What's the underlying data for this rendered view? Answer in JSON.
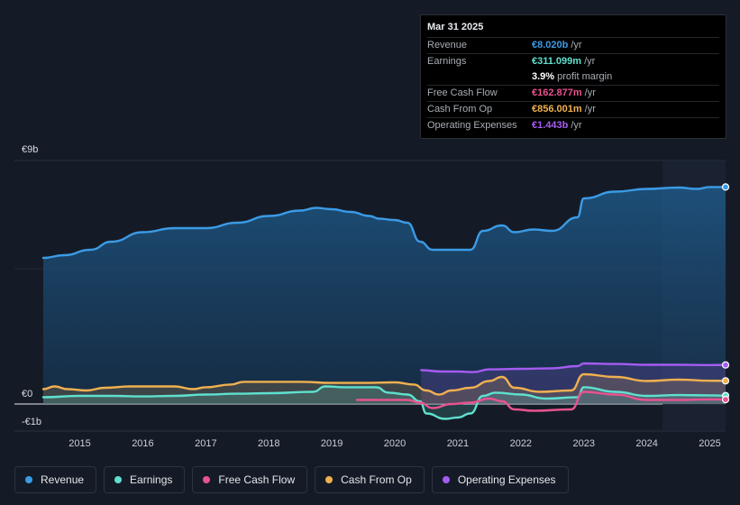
{
  "tooltip": {
    "date": "Mar 31 2025",
    "rows": [
      {
        "label": "Revenue",
        "value": "€8.020b",
        "unit": "/yr",
        "color": "#3b9be6"
      },
      {
        "label": "Earnings",
        "value": "€311.099m",
        "unit": "/yr",
        "color": "#5fe0cf"
      },
      {
        "label": "",
        "value": "3.9%",
        "unit": "profit margin",
        "color": "#ffffff"
      },
      {
        "label": "Free Cash Flow",
        "value": "€162.877m",
        "unit": "/yr",
        "color": "#e8538f"
      },
      {
        "label": "Cash From Op",
        "value": "€856.001m",
        "unit": "/yr",
        "color": "#f0b050"
      },
      {
        "label": "Operating Expenses",
        "value": "€1.443b",
        "unit": "/yr",
        "color": "#a55cf2"
      }
    ]
  },
  "legend": [
    {
      "label": "Revenue",
      "color": "#3b9be6"
    },
    {
      "label": "Earnings",
      "color": "#5fe0cf"
    },
    {
      "label": "Free Cash Flow",
      "color": "#e8538f"
    },
    {
      "label": "Cash From Op",
      "color": "#f0b050"
    },
    {
      "label": "Operating Expenses",
      "color": "#a55cf2"
    }
  ],
  "chart_data": {
    "type": "area",
    "title": "",
    "xlabel": "",
    "ylabel": "",
    "ylim": [
      -1,
      9
    ],
    "xlim": [
      2014.42,
      2025.25
    ],
    "y_ticks": [
      {
        "value": 9,
        "label": "€9b"
      },
      {
        "value": 0,
        "label": "€0"
      },
      {
        "value": -1,
        "label": "-€1b"
      }
    ],
    "x_ticks": [
      2015,
      2016,
      2017,
      2018,
      2019,
      2020,
      2021,
      2022,
      2023,
      2024,
      2025
    ],
    "x_tick_labels": [
      "2015",
      "2016",
      "2017",
      "2018",
      "2019",
      "2020",
      "2021",
      "2022",
      "2023",
      "2024",
      "2025"
    ],
    "highlight_from": 2024.25,
    "series": [
      {
        "name": "Revenue",
        "color": "#3b9be6",
        "fill": true,
        "points": [
          [
            2014.42,
            5.4
          ],
          [
            2014.75,
            5.5
          ],
          [
            2015.17,
            5.7
          ],
          [
            2015.5,
            6.0
          ],
          [
            2016.0,
            6.35
          ],
          [
            2016.5,
            6.5
          ],
          [
            2017.0,
            6.5
          ],
          [
            2017.5,
            6.7
          ],
          [
            2018.0,
            6.95
          ],
          [
            2018.5,
            7.15
          ],
          [
            2018.75,
            7.25
          ],
          [
            2019.0,
            7.2
          ],
          [
            2019.3,
            7.1
          ],
          [
            2019.6,
            6.95
          ],
          [
            2019.75,
            6.85
          ],
          [
            2020.0,
            6.8
          ],
          [
            2020.2,
            6.7
          ],
          [
            2020.4,
            6.0
          ],
          [
            2020.6,
            5.7
          ],
          [
            2021.0,
            5.7
          ],
          [
            2021.2,
            5.7
          ],
          [
            2021.4,
            6.4
          ],
          [
            2021.7,
            6.6
          ],
          [
            2021.9,
            6.35
          ],
          [
            2022.2,
            6.45
          ],
          [
            2022.5,
            6.4
          ],
          [
            2022.9,
            6.9
          ],
          [
            2023.0,
            7.6
          ],
          [
            2023.5,
            7.85
          ],
          [
            2024.0,
            7.95
          ],
          [
            2024.5,
            8.0
          ],
          [
            2024.8,
            7.95
          ],
          [
            2025.0,
            8.02
          ],
          [
            2025.25,
            8.02
          ]
        ]
      },
      {
        "name": "Operating Expenses",
        "color": "#a55cf2",
        "fill": true,
        "points": [
          [
            2020.42,
            1.25
          ],
          [
            2020.75,
            1.2
          ],
          [
            2021.0,
            1.2
          ],
          [
            2021.25,
            1.18
          ],
          [
            2021.5,
            1.28
          ],
          [
            2022.0,
            1.3
          ],
          [
            2022.5,
            1.32
          ],
          [
            2022.9,
            1.4
          ],
          [
            2023.0,
            1.5
          ],
          [
            2023.5,
            1.48
          ],
          [
            2024.0,
            1.45
          ],
          [
            2024.5,
            1.45
          ],
          [
            2025.0,
            1.44
          ],
          [
            2025.25,
            1.443
          ]
        ]
      },
      {
        "name": "Cash From Op",
        "color": "#f0b050",
        "fill": true,
        "points": [
          [
            2014.42,
            0.55
          ],
          [
            2014.6,
            0.65
          ],
          [
            2014.8,
            0.55
          ],
          [
            2015.1,
            0.5
          ],
          [
            2015.4,
            0.6
          ],
          [
            2015.8,
            0.65
          ],
          [
            2016.5,
            0.65
          ],
          [
            2016.8,
            0.55
          ],
          [
            2017.0,
            0.62
          ],
          [
            2017.4,
            0.72
          ],
          [
            2017.6,
            0.82
          ],
          [
            2018.0,
            0.82
          ],
          [
            2018.5,
            0.82
          ],
          [
            2019.0,
            0.78
          ],
          [
            2019.5,
            0.78
          ],
          [
            2020.0,
            0.8
          ],
          [
            2020.3,
            0.72
          ],
          [
            2020.5,
            0.5
          ],
          [
            2020.7,
            0.35
          ],
          [
            2020.9,
            0.5
          ],
          [
            2021.2,
            0.6
          ],
          [
            2021.5,
            0.85
          ],
          [
            2021.7,
            1.0
          ],
          [
            2021.9,
            0.6
          ],
          [
            2022.3,
            0.45
          ],
          [
            2022.8,
            0.5
          ],
          [
            2023.0,
            1.1
          ],
          [
            2023.5,
            1.0
          ],
          [
            2024.0,
            0.85
          ],
          [
            2024.5,
            0.9
          ],
          [
            2025.0,
            0.86
          ],
          [
            2025.25,
            0.856
          ]
        ]
      },
      {
        "name": "Earnings",
        "color": "#5fe0cf",
        "fill": true,
        "points": [
          [
            2014.42,
            0.25
          ],
          [
            2015.0,
            0.3
          ],
          [
            2015.5,
            0.3
          ],
          [
            2016.0,
            0.28
          ],
          [
            2016.5,
            0.3
          ],
          [
            2017.0,
            0.35
          ],
          [
            2017.5,
            0.38
          ],
          [
            2018.0,
            0.4
          ],
          [
            2018.7,
            0.45
          ],
          [
            2018.9,
            0.65
          ],
          [
            2019.2,
            0.62
          ],
          [
            2019.7,
            0.62
          ],
          [
            2019.9,
            0.42
          ],
          [
            2020.2,
            0.35
          ],
          [
            2020.4,
            0.1
          ],
          [
            2020.5,
            -0.35
          ],
          [
            2020.8,
            -0.55
          ],
          [
            2021.0,
            -0.5
          ],
          [
            2021.2,
            -0.35
          ],
          [
            2021.4,
            0.3
          ],
          [
            2021.6,
            0.42
          ],
          [
            2022.0,
            0.35
          ],
          [
            2022.4,
            0.2
          ],
          [
            2022.9,
            0.25
          ],
          [
            2023.0,
            0.62
          ],
          [
            2023.5,
            0.45
          ],
          [
            2024.0,
            0.3
          ],
          [
            2024.5,
            0.33
          ],
          [
            2025.0,
            0.32
          ],
          [
            2025.25,
            0.311
          ]
        ]
      },
      {
        "name": "Free Cash Flow",
        "color": "#e8538f",
        "fill": false,
        "points": [
          [
            2019.4,
            0.15
          ],
          [
            2019.75,
            0.15
          ],
          [
            2020.2,
            0.15
          ],
          [
            2020.4,
            0.05
          ],
          [
            2020.6,
            -0.15
          ],
          [
            2020.9,
            0.0
          ],
          [
            2021.2,
            0.05
          ],
          [
            2021.5,
            0.2
          ],
          [
            2021.7,
            0.1
          ],
          [
            2021.9,
            -0.2
          ],
          [
            2022.2,
            -0.25
          ],
          [
            2022.8,
            -0.2
          ],
          [
            2023.0,
            0.45
          ],
          [
            2023.5,
            0.35
          ],
          [
            2024.0,
            0.15
          ],
          [
            2024.5,
            0.15
          ],
          [
            2025.0,
            0.17
          ],
          [
            2025.25,
            0.163
          ]
        ]
      }
    ]
  }
}
